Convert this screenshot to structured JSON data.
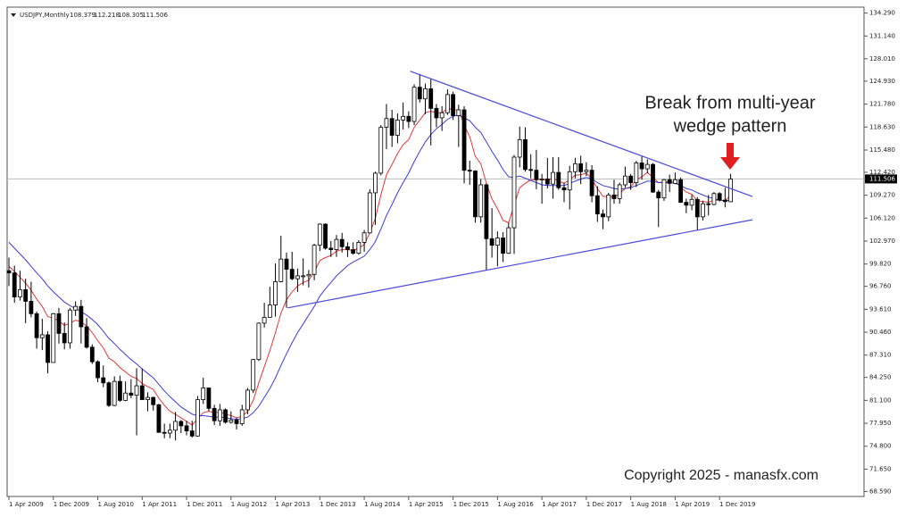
{
  "chart_data": {
    "type": "candlestick",
    "title": "USDJPY,Monthly",
    "annotation": [
      "Break from multi-year",
      "wedge pattern"
    ],
    "copyright": "Copyright 2025 - manasfx.com",
    "up_color": "#ffffff",
    "down_color": "#000000",
    "current_price": {
      "value": 111.506,
      "label": "111.506"
    },
    "ylim": [
      67.9,
      135.1
    ],
    "yticks": [
      {
        "value": 134.29,
        "label": "134.290"
      },
      {
        "value": 131.14,
        "label": "131.140"
      },
      {
        "value": 128.01,
        "label": "128.010"
      },
      {
        "value": 124.93,
        "label": "124.930"
      },
      {
        "value": 121.78,
        "label": "121.780"
      },
      {
        "value": 118.63,
        "label": "118.630"
      },
      {
        "value": 115.48,
        "label": "115.480"
      },
      {
        "value": 112.42,
        "label": "112.420"
      },
      {
        "value": 109.27,
        "label": "109.270"
      },
      {
        "value": 106.12,
        "label": "106.120"
      },
      {
        "value": 102.97,
        "label": "102.970"
      },
      {
        "value": 99.82,
        "label": "99.820"
      },
      {
        "value": 96.76,
        "label": "96.760"
      },
      {
        "value": 93.61,
        "label": "93.610"
      },
      {
        "value": 90.46,
        "label": "90.460"
      },
      {
        "value": 87.31,
        "label": "87.310"
      },
      {
        "value": 84.25,
        "label": "84.250"
      },
      {
        "value": 81.1,
        "label": "81.100"
      },
      {
        "value": 77.95,
        "label": "77.950"
      },
      {
        "value": 74.8,
        "label": "74.800"
      },
      {
        "value": 71.65,
        "label": "71.650"
      },
      {
        "value": 68.59,
        "label": "68.590"
      }
    ],
    "categories": [
      "1 Apr 2009",
      null,
      null,
      null,
      null,
      null,
      null,
      null,
      "1 Dec 2009",
      null,
      null,
      null,
      null,
      null,
      null,
      null,
      "1 Aug 2010",
      null,
      null,
      null,
      null,
      null,
      null,
      null,
      "1 Apr 2011",
      null,
      null,
      null,
      null,
      null,
      null,
      null,
      "1 Dec 2011",
      null,
      null,
      null,
      null,
      null,
      null,
      null,
      "1 Aug 2012",
      null,
      null,
      null,
      null,
      null,
      null,
      null,
      "1 Apr 2013",
      null,
      null,
      null,
      null,
      null,
      null,
      null,
      "1 Dec 2013",
      null,
      null,
      null,
      null,
      null,
      null,
      null,
      "1 Aug 2014",
      null,
      null,
      null,
      null,
      null,
      null,
      null,
      "1 Apr 2015",
      null,
      null,
      null,
      null,
      null,
      null,
      null,
      "1 Dec 2015",
      null,
      null,
      null,
      null,
      null,
      null,
      null,
      "1 Aug 2016",
      null,
      null,
      null,
      null,
      null,
      null,
      null,
      "1 Apr 2017",
      null,
      null,
      null,
      null,
      null,
      null,
      null,
      "1 Dec 2017",
      null,
      null,
      null,
      null,
      null,
      null,
      null,
      "1 Aug 2018",
      null,
      null,
      null,
      null,
      null,
      null,
      null,
      "1 Apr 2019",
      null,
      null,
      null,
      null,
      null,
      null,
      null,
      "1 Dec 2019",
      null,
      null
    ],
    "candles": [
      [
        98.9,
        100.7,
        96.8,
        98.6
      ],
      [
        98.6,
        99.6,
        94.5,
        95.3
      ],
      [
        95.3,
        98.9,
        94.8,
        96.3
      ],
      [
        96.3,
        97.8,
        91.7,
        94.7
      ],
      [
        94.7,
        97.4,
        92.5,
        93.0
      ],
      [
        93.0,
        93.3,
        88.2,
        89.7
      ],
      [
        89.7,
        92.3,
        88.0,
        90.1
      ],
      [
        90.1,
        90.6,
        84.8,
        86.3
      ],
      [
        86.3,
        93.1,
        86.3,
        93.0
      ],
      [
        93.0,
        93.8,
        88.9,
        90.3
      ],
      [
        90.3,
        91.8,
        88.1,
        89.0
      ],
      [
        89.0,
        93.8,
        88.2,
        93.5
      ],
      [
        93.5,
        94.7,
        92.7,
        94.0
      ],
      [
        94.0,
        94.9,
        88.9,
        91.2
      ],
      [
        91.2,
        92.4,
        88.2,
        88.4
      ],
      [
        88.4,
        88.8,
        86.1,
        86.4
      ],
      [
        86.4,
        86.6,
        83.6,
        84.2
      ],
      [
        84.2,
        85.9,
        82.9,
        83.5
      ],
      [
        83.5,
        83.7,
        80.2,
        80.4
      ],
      [
        80.4,
        84.4,
        80.3,
        83.7
      ],
      [
        83.7,
        84.5,
        80.9,
        81.1
      ],
      [
        81.1,
        83.7,
        81.0,
        82.1
      ],
      [
        82.1,
        84.0,
        81.4,
        81.8
      ],
      [
        81.8,
        85.5,
        76.3,
        83.1
      ],
      [
        83.1,
        85.5,
        81.2,
        81.2
      ],
      [
        81.2,
        82.2,
        79.6,
        81.5
      ],
      [
        81.5,
        81.6,
        79.7,
        80.5
      ],
      [
        80.5,
        80.6,
        76.7,
        76.7
      ],
      [
        76.7,
        77.9,
        75.9,
        76.6
      ],
      [
        76.6,
        77.9,
        75.9,
        77.0
      ],
      [
        77.0,
        79.5,
        75.6,
        78.2
      ],
      [
        78.2,
        78.4,
        76.6,
        77.6
      ],
      [
        77.6,
        78.3,
        76.3,
        76.9
      ],
      [
        76.9,
        78.3,
        76.0,
        76.2
      ],
      [
        76.2,
        81.7,
        76.1,
        81.2
      ],
      [
        81.2,
        84.2,
        80.6,
        82.8
      ],
      [
        82.8,
        82.8,
        79.6,
        80.0
      ],
      [
        80.0,
        80.5,
        77.7,
        78.3
      ],
      [
        78.3,
        80.6,
        77.6,
        79.8
      ],
      [
        79.8,
        80.0,
        77.9,
        78.1
      ],
      [
        78.1,
        79.6,
        77.9,
        78.4
      ],
      [
        78.4,
        78.7,
        77.1,
        77.9
      ],
      [
        77.9,
        80.5,
        77.6,
        79.8
      ],
      [
        79.8,
        82.8,
        79.2,
        82.5
      ],
      [
        82.5,
        86.8,
        82.1,
        86.7
      ],
      [
        86.7,
        91.8,
        86.5,
        91.7
      ],
      [
        91.7,
        94.5,
        91.1,
        92.5
      ],
      [
        92.5,
        96.7,
        92.5,
        94.2
      ],
      [
        94.2,
        99.9,
        92.6,
        97.4
      ],
      [
        97.4,
        103.7,
        97.3,
        100.5
      ],
      [
        100.5,
        101.4,
        93.8,
        99.1
      ],
      [
        99.1,
        101.5,
        97.6,
        97.8
      ],
      [
        97.8,
        99.2,
        96.0,
        98.2
      ],
      [
        98.2,
        100.6,
        96.9,
        98.2
      ],
      [
        98.2,
        99.0,
        96.6,
        98.4
      ],
      [
        98.4,
        102.6,
        97.6,
        102.4
      ],
      [
        102.4,
        105.4,
        101.6,
        105.3
      ],
      [
        105.3,
        105.4,
        101.8,
        102.0
      ],
      [
        102.0,
        103.0,
        100.8,
        101.8
      ],
      [
        101.8,
        103.8,
        100.8,
        103.2
      ],
      [
        103.2,
        104.1,
        101.4,
        102.2
      ],
      [
        102.2,
        102.8,
        100.8,
        101.8
      ],
      [
        101.8,
        102.8,
        101.1,
        101.3
      ],
      [
        101.3,
        103.1,
        101.1,
        102.8
      ],
      [
        102.8,
        104.5,
        101.5,
        104.1
      ],
      [
        104.1,
        110.1,
        104.0,
        109.6
      ],
      [
        109.6,
        112.5,
        105.2,
        112.3
      ],
      [
        112.3,
        118.9,
        112.0,
        118.6
      ],
      [
        118.6,
        121.8,
        115.6,
        119.8
      ],
      [
        119.8,
        121.0,
        115.9,
        117.5
      ],
      [
        117.5,
        120.5,
        116.4,
        119.6
      ],
      [
        119.6,
        122.0,
        118.3,
        120.1
      ],
      [
        120.1,
        120.8,
        118.5,
        119.4
      ],
      [
        119.4,
        124.5,
        118.9,
        124.1
      ],
      [
        124.1,
        125.9,
        122.0,
        122.5
      ],
      [
        122.5,
        124.6,
        120.4,
        123.9
      ],
      [
        123.9,
        125.3,
        116.1,
        121.2
      ],
      [
        121.2,
        121.8,
        118.6,
        119.9
      ],
      [
        119.9,
        121.5,
        118.1,
        120.6
      ],
      [
        120.6,
        123.8,
        120.3,
        123.1
      ],
      [
        123.1,
        123.5,
        119.6,
        120.2
      ],
      [
        120.2,
        121.7,
        115.9,
        121.0
      ],
      [
        121.0,
        121.5,
        110.9,
        112.7
      ],
      [
        112.7,
        114.0,
        110.7,
        112.6
      ],
      [
        112.6,
        112.7,
        105.5,
        106.3
      ],
      [
        106.3,
        111.5,
        105.5,
        110.7
      ],
      [
        110.7,
        110.9,
        99.0,
        103.3
      ],
      [
        103.3,
        107.5,
        100.7,
        102.4
      ],
      [
        102.4,
        104.3,
        99.5,
        103.4
      ],
      [
        103.4,
        104.2,
        100.1,
        101.3
      ],
      [
        101.3,
        105.5,
        101.2,
        104.8
      ],
      [
        104.8,
        114.8,
        101.2,
        114.5
      ],
      [
        114.5,
        118.7,
        113.1,
        116.9
      ],
      [
        116.9,
        118.6,
        112.5,
        112.8
      ],
      [
        112.8,
        114.9,
        111.6,
        112.7
      ],
      [
        112.7,
        115.5,
        110.1,
        111.4
      ],
      [
        111.4,
        112.2,
        108.1,
        111.5
      ],
      [
        111.5,
        114.4,
        110.2,
        110.8
      ],
      [
        110.8,
        114.5,
        108.8,
        112.4
      ],
      [
        112.4,
        114.5,
        110.0,
        110.3
      ],
      [
        110.3,
        111.0,
        108.3,
        110.0
      ],
      [
        110.0,
        113.3,
        107.3,
        112.5
      ],
      [
        112.5,
        114.4,
        111.6,
        113.6
      ],
      [
        113.6,
        114.7,
        110.8,
        112.5
      ],
      [
        112.5,
        113.8,
        111.9,
        112.7
      ],
      [
        112.7,
        113.4,
        108.3,
        109.2
      ],
      [
        109.2,
        110.5,
        105.6,
        106.7
      ],
      [
        106.7,
        107.3,
        104.6,
        106.3
      ],
      [
        106.3,
        109.6,
        105.7,
        109.3
      ],
      [
        109.3,
        111.4,
        108.1,
        108.8
      ],
      [
        108.8,
        111.0,
        108.1,
        110.7
      ],
      [
        110.7,
        113.2,
        110.3,
        111.9
      ],
      [
        111.9,
        112.2,
        110.0,
        111.0
      ],
      [
        111.0,
        114.0,
        110.4,
        113.7
      ],
      [
        113.7,
        114.6,
        111.4,
        112.9
      ],
      [
        112.9,
        114.2,
        112.3,
        113.5
      ],
      [
        113.5,
        113.7,
        109.6,
        109.7
      ],
      [
        109.7,
        110.0,
        104.9,
        108.9
      ],
      [
        108.9,
        111.5,
        108.5,
        111.4
      ],
      [
        111.4,
        112.1,
        109.7,
        110.9
      ],
      [
        110.9,
        112.4,
        110.8,
        111.4
      ],
      [
        111.4,
        111.7,
        108.2,
        108.3
      ],
      [
        108.3,
        108.8,
        106.8,
        107.9
      ],
      [
        107.9,
        109.3,
        107.2,
        108.7
      ],
      [
        108.7,
        109.0,
        104.5,
        106.3
      ],
      [
        106.3,
        108.5,
        105.8,
        108.1
      ],
      [
        108.1,
        109.3,
        106.5,
        108.0
      ],
      [
        108.0,
        109.7,
        107.9,
        109.5
      ],
      [
        109.5,
        109.7,
        108.4,
        108.6
      ],
      [
        108.6,
        110.3,
        107.6,
        108.4
      ],
      [
        108.379,
        112.218,
        108.305,
        111.506
      ]
    ],
    "series": [
      {
        "color": "#e03a3a",
        "values": [
          99.5,
          98.8,
          98.0,
          97.2,
          96.2,
          95.0,
          94.0,
          92.6,
          92.4,
          92.0,
          91.4,
          91.7,
          92.1,
          91.9,
          91.3,
          90.4,
          89.3,
          88.3,
          86.9,
          86.4,
          85.6,
          85.0,
          84.4,
          84.1,
          83.4,
          83.0,
          82.6,
          81.4,
          80.4,
          79.6,
          79.2,
          78.7,
          78.2,
          77.7,
          78.6,
          79.4,
          79.6,
          79.4,
          79.5,
          79.2,
          79.0,
          78.7,
          78.9,
          79.6,
          81.1,
          83.5,
          85.7,
          87.9,
          90.4,
          93.1,
          94.9,
          96.0,
          96.8,
          97.3,
          97.6,
          98.7,
          100.3,
          100.7,
          101.0,
          101.6,
          101.8,
          101.8,
          101.7,
          102.0,
          102.5,
          104.1,
          106.1,
          109.3,
          112.1,
          113.5,
          115.0,
          116.2,
          116.9,
          118.6,
          119.6,
          120.6,
          120.8,
          120.6,
          120.6,
          121.2,
          121.0,
          121.0,
          118.9,
          117.3,
          114.6,
          113.6,
          110.9,
          108.8,
          107.4,
          105.8,
          105.5,
          107.9,
          110.3,
          110.9,
          111.4,
          111.4,
          111.5,
          111.3,
          111.6,
          111.2,
          110.9,
          111.4,
          112.0,
          112.1,
          112.3,
          111.5,
          110.2,
          109.1,
          109.1,
          109.0,
          109.5,
          110.2,
          110.4,
          111.4,
          111.8,
          112.4,
          111.7,
          111.0,
          111.1,
          111.1,
          111.2,
          110.4,
          109.7,
          109.4,
          108.5,
          108.4,
          108.3,
          108.6,
          108.6,
          108.5,
          109.3
        ]
      },
      {
        "color": "#3b3bd6",
        "values": [
          102.8,
          102.0,
          101.2,
          100.4,
          99.5,
          98.6,
          97.8,
          96.8,
          96.0,
          95.3,
          94.6,
          94.1,
          93.7,
          93.3,
          92.8,
          92.2,
          91.5,
          90.6,
          89.6,
          88.9,
          88.1,
          87.4,
          86.7,
          86.1,
          85.4,
          84.8,
          84.2,
          83.3,
          82.4,
          81.6,
          80.9,
          80.2,
          79.7,
          79.2,
          79.0,
          79.0,
          78.9,
          78.8,
          78.8,
          78.7,
          78.6,
          78.5,
          78.6,
          78.8,
          79.4,
          80.3,
          81.5,
          82.7,
          84.2,
          85.9,
          87.5,
          89.0,
          90.4,
          91.6,
          92.8,
          94.0,
          95.4,
          96.4,
          97.3,
          98.2,
          98.9,
          99.6,
          100.1,
          100.5,
          100.9,
          101.8,
          102.9,
          104.6,
          106.5,
          108.0,
          109.6,
          111.0,
          112.3,
          113.9,
          115.3,
          116.6,
          117.6,
          118.4,
          119.0,
          119.7,
          120.1,
          120.3,
          119.9,
          119.5,
          118.6,
          117.9,
          116.6,
          115.3,
          114.1,
          112.8,
          111.8,
          111.7,
          111.9,
          111.6,
          111.3,
          111.0,
          110.7,
          110.6,
          110.6,
          110.6,
          110.6,
          110.9,
          111.2,
          111.5,
          111.7,
          111.5,
          111.0,
          110.6,
          110.4,
          110.2,
          110.1,
          110.2,
          110.3,
          110.6,
          110.9,
          111.2,
          111.2,
          111.0,
          111.0,
          111.0,
          110.9,
          110.6,
          110.2,
          110.0,
          109.6,
          109.3,
          109.0,
          108.8,
          108.6,
          108.5,
          108.6
        ]
      }
    ],
    "trendlines": [
      {
        "color": "#4a4ae0",
        "x": [
          72.3,
          133.9
        ],
        "values": [
          126.3,
          109.1
        ]
      },
      {
        "color": "#4a4ae0",
        "x": [
          50.2,
          133.9
        ],
        "values": [
          93.8,
          105.9
        ]
      }
    ]
  }
}
